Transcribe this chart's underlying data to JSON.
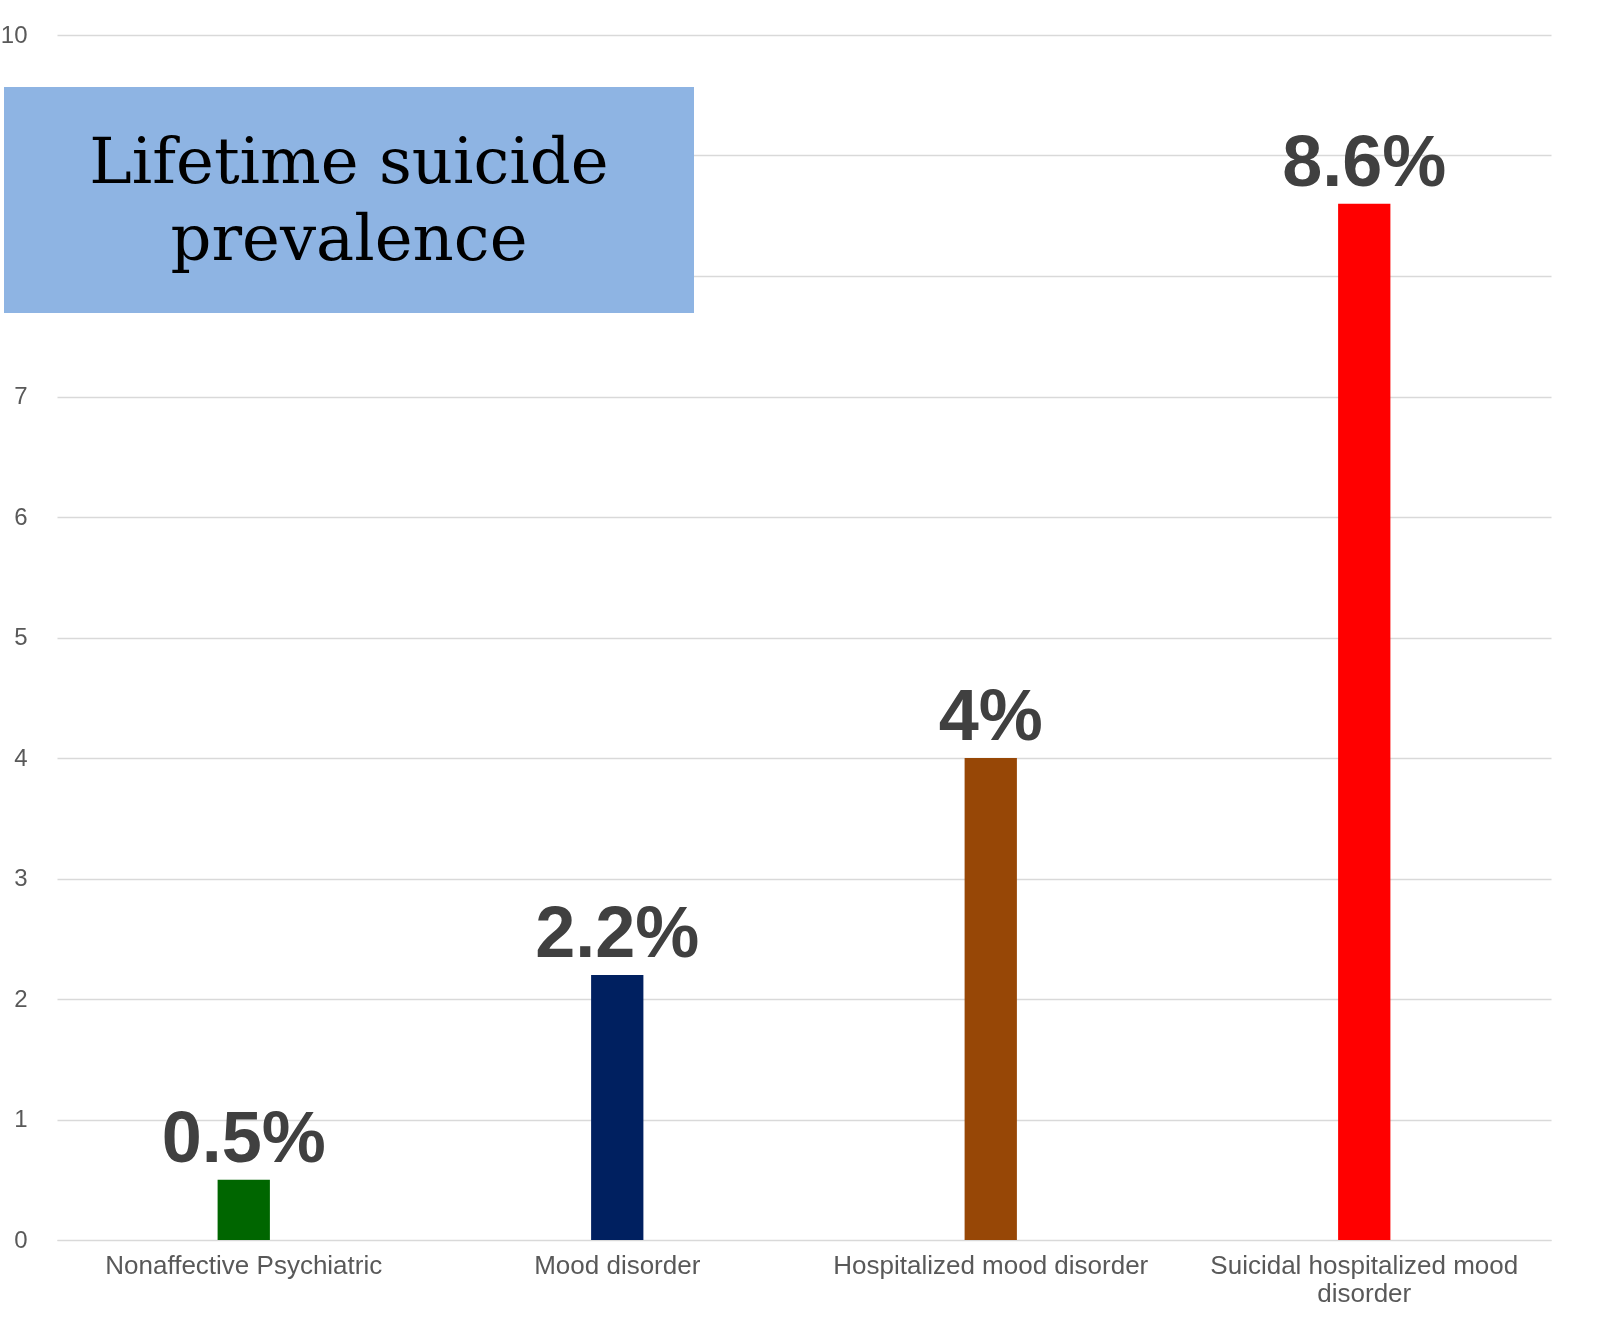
{
  "chart_data": {
    "type": "bar",
    "title": "Lifetime suicide prevalence",
    "categories": [
      "Nonaffective Psychiatric",
      "Mood disorder",
      "Hospitalized mood disorder",
      "Suicidal hospitalized mood disorder"
    ],
    "values": [
      0.5,
      2.2,
      4,
      8.6
    ],
    "colors": [
      "#006600",
      "#002060",
      "#974706",
      "#ff0000"
    ],
    "value_labels": [
      "0.5%",
      "2.2%",
      "4%",
      "8.6%"
    ],
    "ylim": [
      0,
      10
    ],
    "yticks": [
      0,
      1,
      2,
      3,
      4,
      5,
      6,
      7,
      {
        "value": 8,
        "label": null
      },
      {
        "value": 9,
        "label": null
      },
      10
    ],
    "grid": "y"
  }
}
